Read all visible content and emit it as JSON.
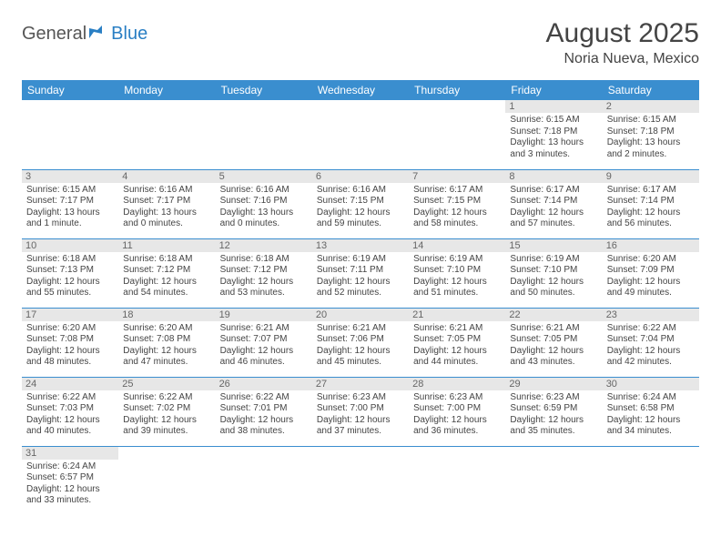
{
  "logo": {
    "part1": "General",
    "part2": "Blue"
  },
  "header": {
    "title": "August 2025",
    "location": "Noria Nueva, Mexico"
  },
  "dayHeaders": [
    "Sunday",
    "Monday",
    "Tuesday",
    "Wednesday",
    "Thursday",
    "Friday",
    "Saturday"
  ],
  "colors": {
    "accent": "#3a8ecf",
    "dayStrip": "#e7e7e7",
    "text": "#444"
  },
  "weeks": [
    [
      null,
      null,
      null,
      null,
      null,
      {
        "n": "1",
        "sr": "Sunrise: 6:15 AM",
        "ss": "Sunset: 7:18 PM",
        "d1": "Daylight: 13 hours",
        "d2": "and 3 minutes."
      },
      {
        "n": "2",
        "sr": "Sunrise: 6:15 AM",
        "ss": "Sunset: 7:18 PM",
        "d1": "Daylight: 13 hours",
        "d2": "and 2 minutes."
      }
    ],
    [
      {
        "n": "3",
        "sr": "Sunrise: 6:15 AM",
        "ss": "Sunset: 7:17 PM",
        "d1": "Daylight: 13 hours",
        "d2": "and 1 minute."
      },
      {
        "n": "4",
        "sr": "Sunrise: 6:16 AM",
        "ss": "Sunset: 7:17 PM",
        "d1": "Daylight: 13 hours",
        "d2": "and 0 minutes."
      },
      {
        "n": "5",
        "sr": "Sunrise: 6:16 AM",
        "ss": "Sunset: 7:16 PM",
        "d1": "Daylight: 13 hours",
        "d2": "and 0 minutes."
      },
      {
        "n": "6",
        "sr": "Sunrise: 6:16 AM",
        "ss": "Sunset: 7:15 PM",
        "d1": "Daylight: 12 hours",
        "d2": "and 59 minutes."
      },
      {
        "n": "7",
        "sr": "Sunrise: 6:17 AM",
        "ss": "Sunset: 7:15 PM",
        "d1": "Daylight: 12 hours",
        "d2": "and 58 minutes."
      },
      {
        "n": "8",
        "sr": "Sunrise: 6:17 AM",
        "ss": "Sunset: 7:14 PM",
        "d1": "Daylight: 12 hours",
        "d2": "and 57 minutes."
      },
      {
        "n": "9",
        "sr": "Sunrise: 6:17 AM",
        "ss": "Sunset: 7:14 PM",
        "d1": "Daylight: 12 hours",
        "d2": "and 56 minutes."
      }
    ],
    [
      {
        "n": "10",
        "sr": "Sunrise: 6:18 AM",
        "ss": "Sunset: 7:13 PM",
        "d1": "Daylight: 12 hours",
        "d2": "and 55 minutes."
      },
      {
        "n": "11",
        "sr": "Sunrise: 6:18 AM",
        "ss": "Sunset: 7:12 PM",
        "d1": "Daylight: 12 hours",
        "d2": "and 54 minutes."
      },
      {
        "n": "12",
        "sr": "Sunrise: 6:18 AM",
        "ss": "Sunset: 7:12 PM",
        "d1": "Daylight: 12 hours",
        "d2": "and 53 minutes."
      },
      {
        "n": "13",
        "sr": "Sunrise: 6:19 AM",
        "ss": "Sunset: 7:11 PM",
        "d1": "Daylight: 12 hours",
        "d2": "and 52 minutes."
      },
      {
        "n": "14",
        "sr": "Sunrise: 6:19 AM",
        "ss": "Sunset: 7:10 PM",
        "d1": "Daylight: 12 hours",
        "d2": "and 51 minutes."
      },
      {
        "n": "15",
        "sr": "Sunrise: 6:19 AM",
        "ss": "Sunset: 7:10 PM",
        "d1": "Daylight: 12 hours",
        "d2": "and 50 minutes."
      },
      {
        "n": "16",
        "sr": "Sunrise: 6:20 AM",
        "ss": "Sunset: 7:09 PM",
        "d1": "Daylight: 12 hours",
        "d2": "and 49 minutes."
      }
    ],
    [
      {
        "n": "17",
        "sr": "Sunrise: 6:20 AM",
        "ss": "Sunset: 7:08 PM",
        "d1": "Daylight: 12 hours",
        "d2": "and 48 minutes."
      },
      {
        "n": "18",
        "sr": "Sunrise: 6:20 AM",
        "ss": "Sunset: 7:08 PM",
        "d1": "Daylight: 12 hours",
        "d2": "and 47 minutes."
      },
      {
        "n": "19",
        "sr": "Sunrise: 6:21 AM",
        "ss": "Sunset: 7:07 PM",
        "d1": "Daylight: 12 hours",
        "d2": "and 46 minutes."
      },
      {
        "n": "20",
        "sr": "Sunrise: 6:21 AM",
        "ss": "Sunset: 7:06 PM",
        "d1": "Daylight: 12 hours",
        "d2": "and 45 minutes."
      },
      {
        "n": "21",
        "sr": "Sunrise: 6:21 AM",
        "ss": "Sunset: 7:05 PM",
        "d1": "Daylight: 12 hours",
        "d2": "and 44 minutes."
      },
      {
        "n": "22",
        "sr": "Sunrise: 6:21 AM",
        "ss": "Sunset: 7:05 PM",
        "d1": "Daylight: 12 hours",
        "d2": "and 43 minutes."
      },
      {
        "n": "23",
        "sr": "Sunrise: 6:22 AM",
        "ss": "Sunset: 7:04 PM",
        "d1": "Daylight: 12 hours",
        "d2": "and 42 minutes."
      }
    ],
    [
      {
        "n": "24",
        "sr": "Sunrise: 6:22 AM",
        "ss": "Sunset: 7:03 PM",
        "d1": "Daylight: 12 hours",
        "d2": "and 40 minutes."
      },
      {
        "n": "25",
        "sr": "Sunrise: 6:22 AM",
        "ss": "Sunset: 7:02 PM",
        "d1": "Daylight: 12 hours",
        "d2": "and 39 minutes."
      },
      {
        "n": "26",
        "sr": "Sunrise: 6:22 AM",
        "ss": "Sunset: 7:01 PM",
        "d1": "Daylight: 12 hours",
        "d2": "and 38 minutes."
      },
      {
        "n": "27",
        "sr": "Sunrise: 6:23 AM",
        "ss": "Sunset: 7:00 PM",
        "d1": "Daylight: 12 hours",
        "d2": "and 37 minutes."
      },
      {
        "n": "28",
        "sr": "Sunrise: 6:23 AM",
        "ss": "Sunset: 7:00 PM",
        "d1": "Daylight: 12 hours",
        "d2": "and 36 minutes."
      },
      {
        "n": "29",
        "sr": "Sunrise: 6:23 AM",
        "ss": "Sunset: 6:59 PM",
        "d1": "Daylight: 12 hours",
        "d2": "and 35 minutes."
      },
      {
        "n": "30",
        "sr": "Sunrise: 6:24 AM",
        "ss": "Sunset: 6:58 PM",
        "d1": "Daylight: 12 hours",
        "d2": "and 34 minutes."
      }
    ],
    [
      {
        "n": "31",
        "sr": "Sunrise: 6:24 AM",
        "ss": "Sunset: 6:57 PM",
        "d1": "Daylight: 12 hours",
        "d2": "and 33 minutes."
      },
      null,
      null,
      null,
      null,
      null,
      null
    ]
  ]
}
